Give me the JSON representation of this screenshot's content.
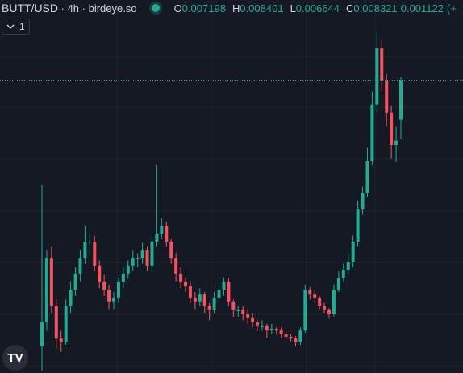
{
  "header": {
    "symbol": "BUTT/USD",
    "interval": "4h",
    "source": "birdeye.so",
    "ohlc": [
      {
        "label": "O",
        "value": "0.007198"
      },
      {
        "label": "H",
        "value": "0.008401"
      },
      {
        "label": "L",
        "value": "0.006644"
      },
      {
        "label": "C",
        "value": "0.008321"
      }
    ],
    "change": "0.001122",
    "change_prefix": "(+",
    "indicators_count": "1"
  },
  "chart_data": {
    "type": "candlestick",
    "up_color": "#22ab94",
    "down_color": "#f7525f",
    "ylim": [
      0,
      0.0106
    ],
    "candles": [
      [
        0.00076,
        0.00534,
        7e-05,
        0.00144
      ],
      [
        0.00144,
        0.0035,
        0.0012,
        0.00327
      ],
      [
        0.00327,
        0.0036,
        0.0017,
        0.0019
      ],
      [
        0.0019,
        0.0021,
        0.0007,
        0.00098
      ],
      [
        0.00098,
        0.0012,
        0.0006,
        0.00087
      ],
      [
        0.00087,
        0.0021,
        0.0008,
        0.0019
      ],
      [
        0.0019,
        0.0026,
        0.0017,
        0.00236
      ],
      [
        0.00236,
        0.003,
        0.0022,
        0.00282
      ],
      [
        0.00282,
        0.0035,
        0.0026,
        0.00327
      ],
      [
        0.00327,
        0.0042,
        0.0031,
        0.00373
      ],
      [
        0.00373,
        0.004,
        0.0034,
        0.00373
      ],
      [
        0.00373,
        0.0039,
        0.0029,
        0.00305
      ],
      [
        0.00305,
        0.0032,
        0.0024,
        0.00259
      ],
      [
        0.00259,
        0.0028,
        0.0022,
        0.00236
      ],
      [
        0.00236,
        0.0025,
        0.0018,
        0.00202
      ],
      [
        0.00202,
        0.0023,
        0.0018,
        0.00213
      ],
      [
        0.00213,
        0.0027,
        0.002,
        0.00259
      ],
      [
        0.00259,
        0.003,
        0.0024,
        0.00282
      ],
      [
        0.00282,
        0.0032,
        0.0027,
        0.00305
      ],
      [
        0.00305,
        0.0035,
        0.0029,
        0.00327
      ],
      [
        0.00327,
        0.0034,
        0.003,
        0.00327
      ],
      [
        0.00327,
        0.0037,
        0.0031,
        0.0035
      ],
      [
        0.0035,
        0.0036,
        0.0029,
        0.00305
      ],
      [
        0.00305,
        0.0039,
        0.0029,
        0.00373
      ],
      [
        0.00373,
        0.00591,
        0.0036,
        0.00396
      ],
      [
        0.00396,
        0.0044,
        0.0038,
        0.00419
      ],
      [
        0.00419,
        0.0043,
        0.0036,
        0.00373
      ],
      [
        0.00373,
        0.0038,
        0.0031,
        0.00327
      ],
      [
        0.00327,
        0.0034,
        0.0026,
        0.00282
      ],
      [
        0.00282,
        0.003,
        0.0024,
        0.00259
      ],
      [
        0.00259,
        0.0027,
        0.0023,
        0.00247
      ],
      [
        0.00247,
        0.0026,
        0.002,
        0.00213
      ],
      [
        0.00213,
        0.0023,
        0.0018,
        0.00202
      ],
      [
        0.00202,
        0.0024,
        0.0019,
        0.00224
      ],
      [
        0.00224,
        0.0023,
        0.0017,
        0.0019
      ],
      [
        0.0019,
        0.002,
        0.0015,
        0.00179
      ],
      [
        0.00179,
        0.0023,
        0.0017,
        0.00213
      ],
      [
        0.00213,
        0.0025,
        0.002,
        0.00236
      ],
      [
        0.00236,
        0.0027,
        0.0022,
        0.00259
      ],
      [
        0.00259,
        0.0027,
        0.0019,
        0.00202
      ],
      [
        0.00202,
        0.0021,
        0.0016,
        0.00179
      ],
      [
        0.00179,
        0.0019,
        0.0016,
        0.00179
      ],
      [
        0.00179,
        0.0019,
        0.0015,
        0.00167
      ],
      [
        0.00167,
        0.0018,
        0.0014,
        0.00156
      ],
      [
        0.00156,
        0.0017,
        0.0013,
        0.00144
      ],
      [
        0.00144,
        0.0015,
        0.0012,
        0.00133
      ],
      [
        0.00133,
        0.0015,
        0.0012,
        0.00133
      ],
      [
        0.00133,
        0.0014,
        0.001,
        0.00121
      ],
      [
        0.00121,
        0.0014,
        0.0011,
        0.00126
      ],
      [
        0.00126,
        0.0013,
        0.0011,
        0.00121
      ],
      [
        0.00121,
        0.0013,
        0.001,
        0.0011
      ],
      [
        0.0011,
        0.0012,
        0.00095,
        0.00103
      ],
      [
        0.00103,
        0.0011,
        0.0009,
        0.00098
      ],
      [
        0.00098,
        0.00105,
        0.00075,
        0.00087
      ],
      [
        0.00087,
        0.0013,
        0.0008,
        0.00121
      ],
      [
        0.00121,
        0.0025,
        0.00115,
        0.00236
      ],
      [
        0.00236,
        0.00245,
        0.0021,
        0.00224
      ],
      [
        0.00224,
        0.00235,
        0.002,
        0.00213
      ],
      [
        0.00213,
        0.0022,
        0.0018,
        0.0019
      ],
      [
        0.0019,
        0.002,
        0.0017,
        0.00179
      ],
      [
        0.00179,
        0.00185,
        0.00155,
        0.00167
      ],
      [
        0.00167,
        0.0025,
        0.0016,
        0.00236
      ],
      [
        0.00236,
        0.0029,
        0.0023,
        0.0027
      ],
      [
        0.0027,
        0.0031,
        0.0026,
        0.00293
      ],
      [
        0.00293,
        0.0034,
        0.0028,
        0.00316
      ],
      [
        0.00316,
        0.0039,
        0.003,
        0.00373
      ],
      [
        0.00373,
        0.0049,
        0.0036,
        0.00465
      ],
      [
        0.00465,
        0.0053,
        0.0045,
        0.00511
      ],
      [
        0.00511,
        0.0064,
        0.005,
        0.00602
      ],
      [
        0.00602,
        0.008,
        0.0059,
        0.00763
      ],
      [
        0.00763,
        0.00969,
        0.0074,
        0.00923
      ],
      [
        0.00923,
        0.0095,
        0.008,
        0.00831
      ],
      [
        0.00831,
        0.0085,
        0.007,
        0.0074
      ],
      [
        0.0074,
        0.0076,
        0.0061,
        0.00648
      ],
      [
        0.00648,
        0.007,
        0.006,
        0.0066
      ],
      [
        0.007198,
        0.008401,
        0.006644,
        0.008321
      ]
    ]
  }
}
